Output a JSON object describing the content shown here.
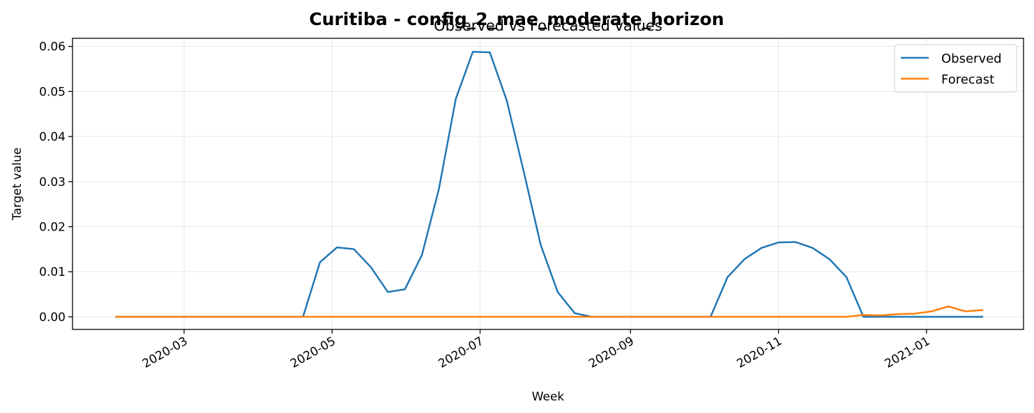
{
  "chart_data": {
    "type": "line",
    "suptitle": "Curitiba - config_2_mae_moderate_horizon",
    "title": "Observed vs Forecasted values",
    "xlabel": "Week",
    "ylabel": "Target value",
    "x_axis": "date",
    "xlim": [
      "2020-01-15",
      "2021-02-10"
    ],
    "ylim": [
      -0.0028,
      0.0618
    ],
    "x_ticks": [
      "2020-03-01",
      "2020-05-01",
      "2020-07-01",
      "2020-09-01",
      "2020-11-01",
      "2021-01-01"
    ],
    "x_tick_labels": [
      "2020-03",
      "2020-05",
      "2020-07",
      "2020-09",
      "2020-11",
      "2021-01"
    ],
    "y_ticks": [
      0.0,
      0.01,
      0.02,
      0.03,
      0.04,
      0.05,
      0.06
    ],
    "y_tick_labels": [
      "0.00",
      "0.01",
      "0.02",
      "0.03",
      "0.04",
      "0.05",
      "0.06"
    ],
    "grid": true,
    "legend_position": "top-right",
    "x": [
      "2020-02-02",
      "2020-02-09",
      "2020-02-16",
      "2020-02-23",
      "2020-03-01",
      "2020-03-08",
      "2020-03-15",
      "2020-03-22",
      "2020-03-29",
      "2020-04-05",
      "2020-04-12",
      "2020-04-19",
      "2020-04-26",
      "2020-05-03",
      "2020-05-10",
      "2020-05-17",
      "2020-05-24",
      "2020-05-31",
      "2020-06-07",
      "2020-06-14",
      "2020-06-21",
      "2020-06-28",
      "2020-07-05",
      "2020-07-12",
      "2020-07-19",
      "2020-07-26",
      "2020-08-02",
      "2020-08-09",
      "2020-08-16",
      "2020-08-23",
      "2020-08-30",
      "2020-09-06",
      "2020-09-13",
      "2020-09-20",
      "2020-09-27",
      "2020-10-04",
      "2020-10-11",
      "2020-10-18",
      "2020-10-25",
      "2020-11-01",
      "2020-11-08",
      "2020-11-15",
      "2020-11-22",
      "2020-11-29",
      "2020-12-06",
      "2020-12-13",
      "2020-12-20",
      "2020-12-27",
      "2021-01-03",
      "2021-01-10",
      "2021-01-17",
      "2021-01-24"
    ],
    "series": [
      {
        "name": "Observed",
        "color": "#1f77b4",
        "values": [
          0,
          0,
          0,
          0,
          0,
          0,
          0,
          0,
          0,
          0,
          0,
          0,
          0.0121,
          0.0154,
          0.015,
          0.011,
          0.0055,
          0.0061,
          0.0137,
          0.0283,
          0.0484,
          0.0588,
          0.0587,
          0.048,
          0.0322,
          0.0159,
          0.0055,
          0.0008,
          0,
          0,
          0,
          0,
          0,
          0,
          0,
          0,
          0.0088,
          0.0128,
          0.0153,
          0.0165,
          0.0166,
          0.0153,
          0.0128,
          0.0088,
          0,
          0,
          0,
          0,
          0,
          0,
          0,
          0
        ]
      },
      {
        "name": "Forecast",
        "color": "#ff7f0e",
        "values": [
          0,
          0,
          0,
          0,
          0,
          0,
          0,
          0,
          0,
          0,
          0,
          0,
          0,
          0,
          0,
          0,
          0,
          0,
          0,
          0,
          0,
          0,
          0,
          0,
          0,
          0,
          0,
          0,
          0,
          0,
          0,
          0,
          0,
          0,
          0,
          0,
          0,
          0,
          0,
          0,
          0,
          0,
          0,
          0,
          0.0004,
          0.0003,
          0.0006,
          0.0007,
          0.0012,
          0.0023,
          0.0012,
          0.0015
        ]
      }
    ]
  }
}
